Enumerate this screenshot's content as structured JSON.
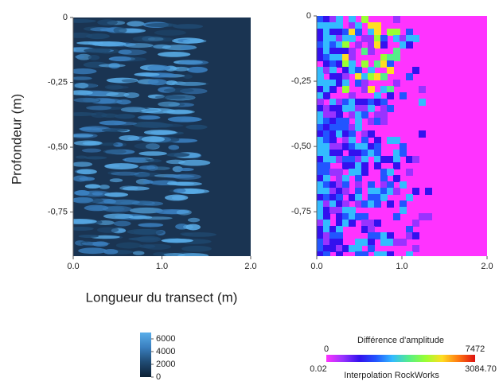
{
  "chart_data": [
    {
      "type": "heatmap",
      "ylabel": "Profondeur (m)",
      "xlabel": "Longueur du transect (m)",
      "xlim": [
        0,
        2
      ],
      "xticks": [
        {
          "value": 0,
          "label": "0.0"
        },
        {
          "value": 1,
          "label": "1.0"
        },
        {
          "value": 2,
          "label": "2.0"
        }
      ],
      "ylim": [
        -0.92,
        0
      ],
      "yticks": [
        0,
        {
          "value": -0.25,
          "label": "-0,25"
        },
        {
          "value": -0.5,
          "label": "-0,50"
        },
        {
          "value": -0.75,
          "label": "-0,75"
        }
      ],
      "colorbar": {
        "orientation": "vertical",
        "clim": [
          0,
          7000
        ],
        "ticks": [
          0,
          2000,
          4000,
          6000
        ],
        "colors": [
          "#0d2035",
          "#1f4a72",
          "#3a7fbf",
          "#5aaeea"
        ]
      }
    },
    {
      "type": "heatmap",
      "xlim": [
        0,
        2
      ],
      "xticks": [
        {
          "value": 0,
          "label": "0.0"
        },
        {
          "value": 1,
          "label": "1.0"
        },
        {
          "value": 2,
          "label": "2.0"
        }
      ],
      "ylim": [
        -0.92,
        0
      ],
      "yticks": [
        0,
        {
          "value": -0.25,
          "label": "-0,25"
        },
        {
          "value": -0.5,
          "label": "-0,50"
        },
        {
          "value": -0.75,
          "label": "-0,75"
        }
      ],
      "colorbar": {
        "orientation": "horizontal",
        "title": "Différence d'amplitude",
        "clim": [
          0,
          7472
        ],
        "range_labels": [
          0.02,
          {
            "value": 3084.7,
            "label": "3084.70"
          }
        ],
        "note": "Interpolation RockWorks",
        "colors": [
          "#ff33ff",
          "#9933ff",
          "#3311ee",
          "#2255ff",
          "#33bbff",
          "#55ee88",
          "#99ff33",
          "#ffdd22",
          "#ff7711",
          "#dd1111"
        ]
      }
    }
  ]
}
